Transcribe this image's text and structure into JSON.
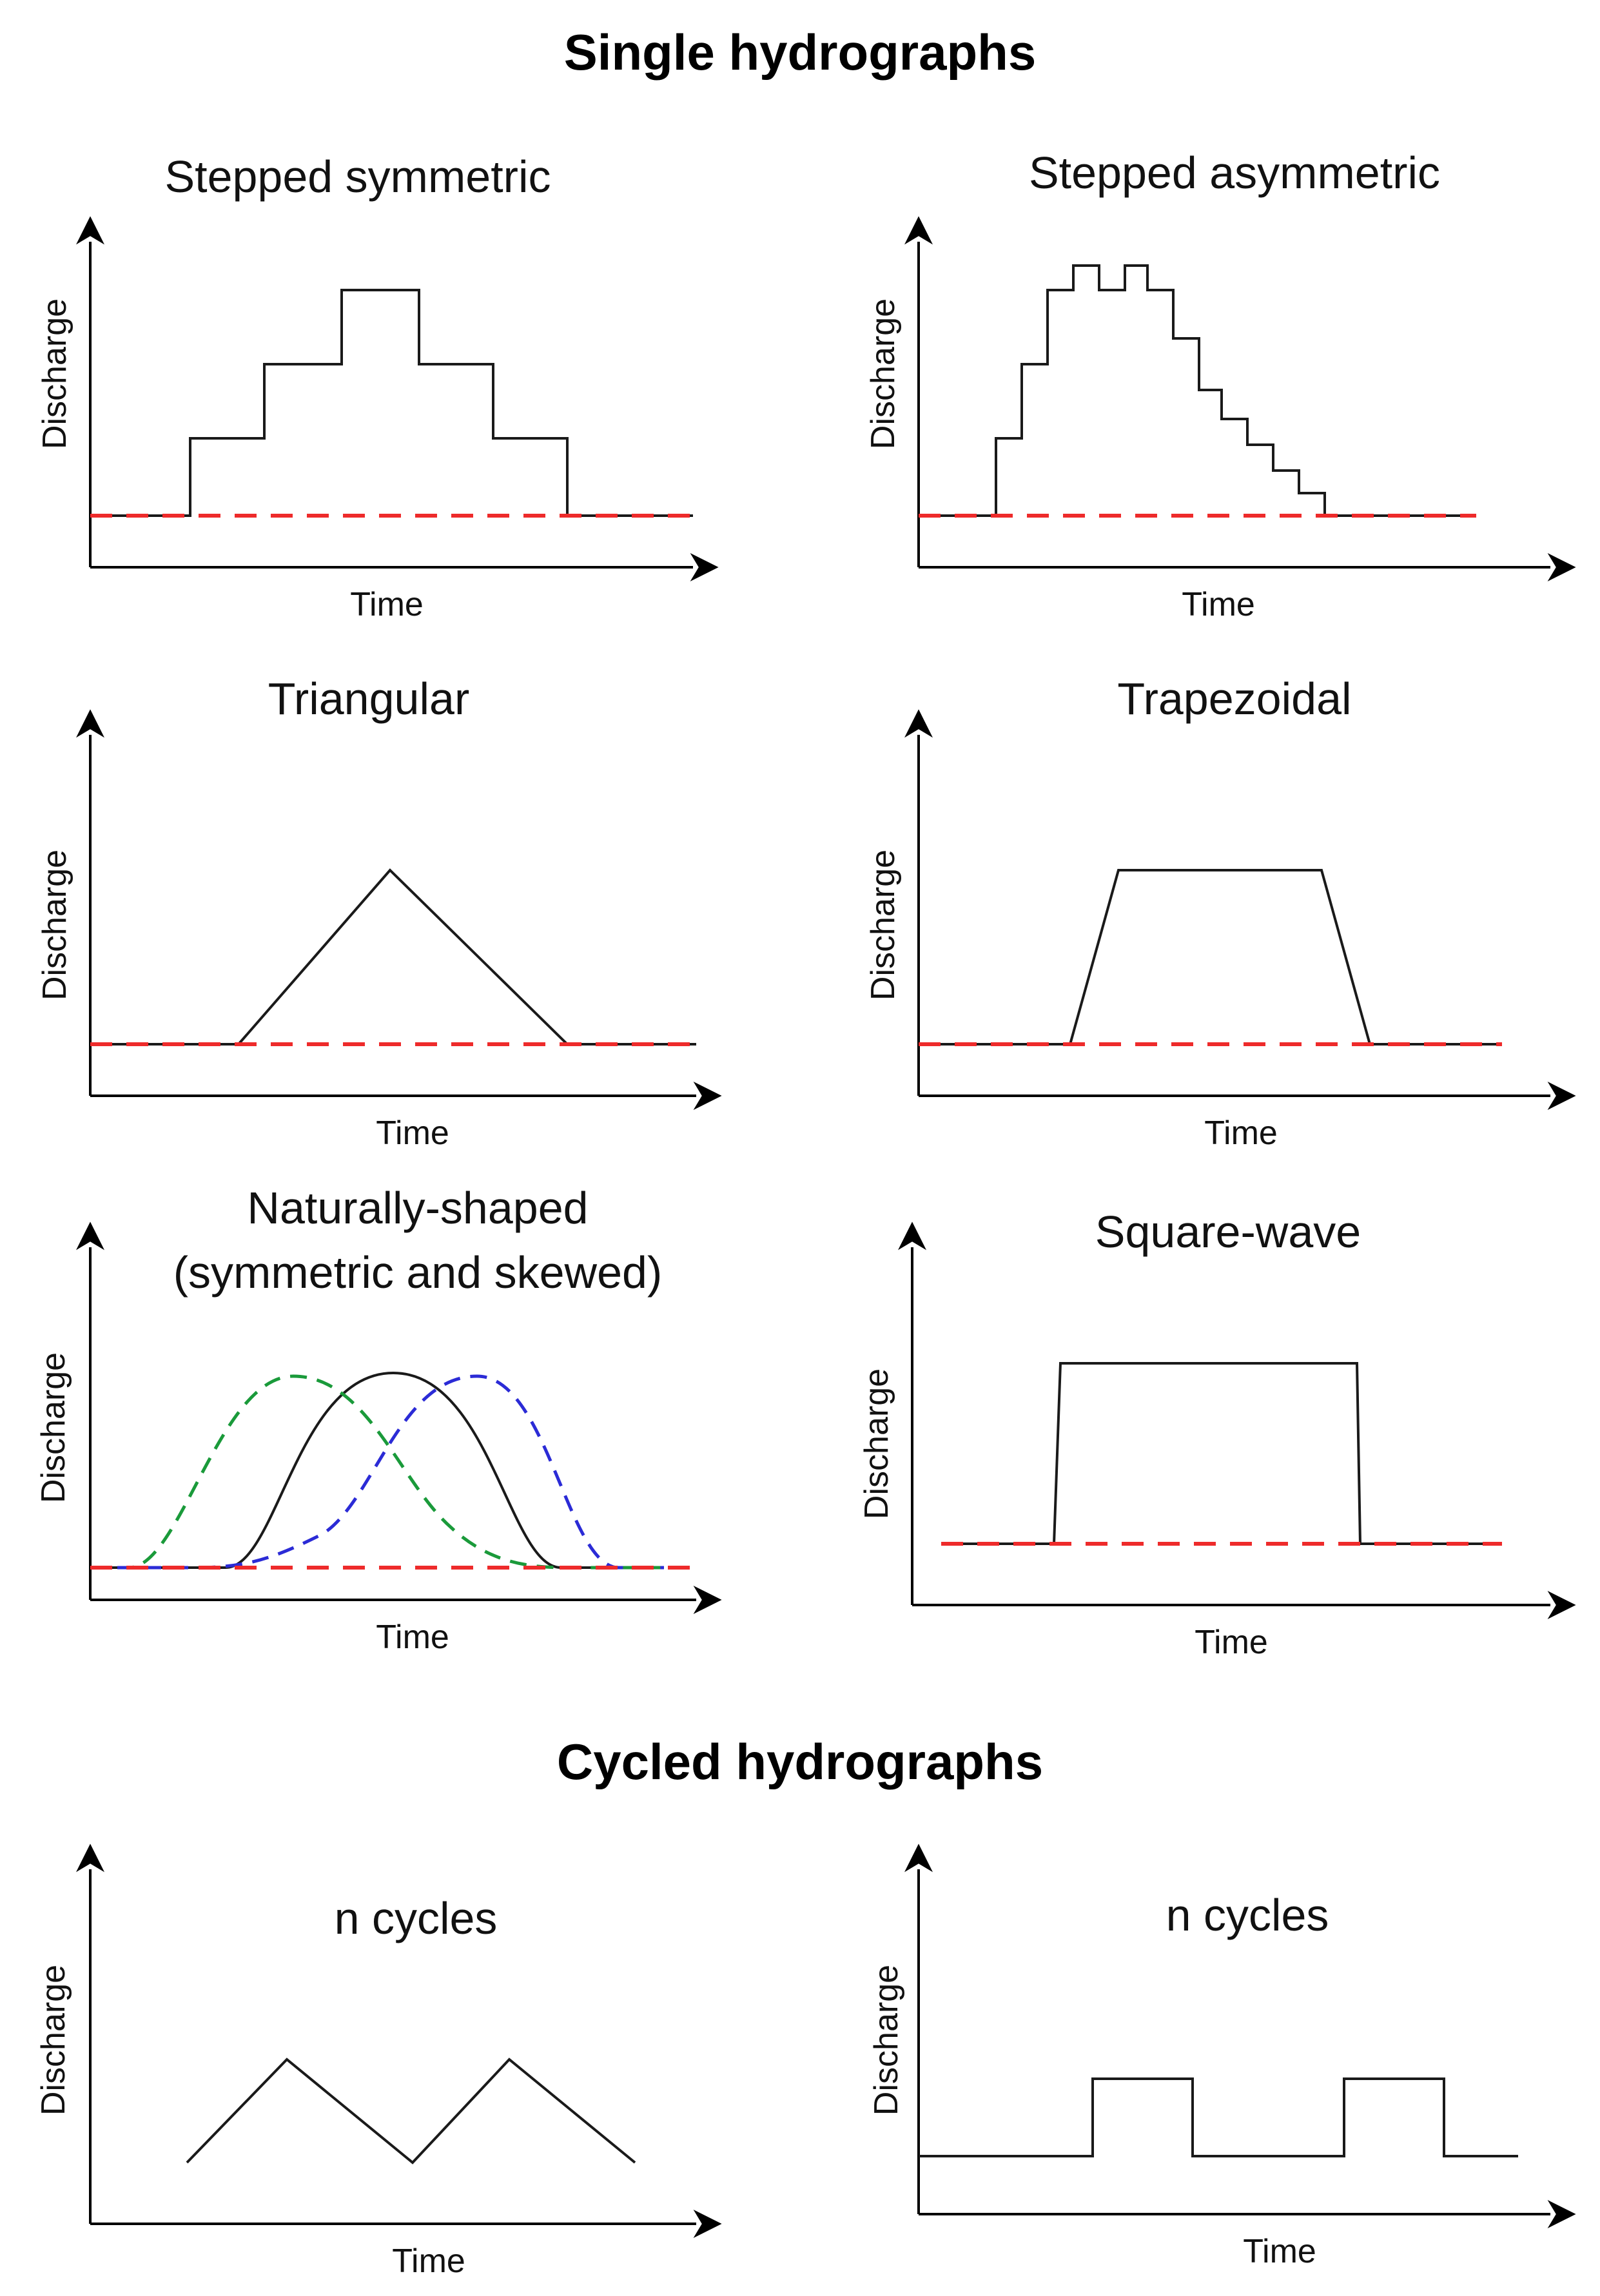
{
  "titles": {
    "single": "Single hydrographs",
    "cycled": "Cycled hydrographs"
  },
  "axis_labels": {
    "y": "Discharge",
    "x": "Time"
  },
  "colors": {
    "baseline": "#ee2b2b",
    "curve": "#1a1a1a",
    "skew_left": "#1a9a3a",
    "skew_right": "#2b2bd6"
  },
  "panels": [
    {
      "id": "stepped-symmetric",
      "title": "Stepped symmetric"
    },
    {
      "id": "stepped-asymmetric",
      "title": "Stepped asymmetric"
    },
    {
      "id": "triangular",
      "title": "Triangular"
    },
    {
      "id": "trapezoidal",
      "title": "Trapezoidal"
    },
    {
      "id": "naturally-shaped",
      "title_line1": "Naturally-shaped",
      "title_line2": "(symmetric and skewed)"
    },
    {
      "id": "square-wave",
      "title": "Square-wave"
    },
    {
      "id": "triangular-cycles",
      "title": "n cycles"
    },
    {
      "id": "square-cycles",
      "title": "n cycles"
    }
  ]
}
